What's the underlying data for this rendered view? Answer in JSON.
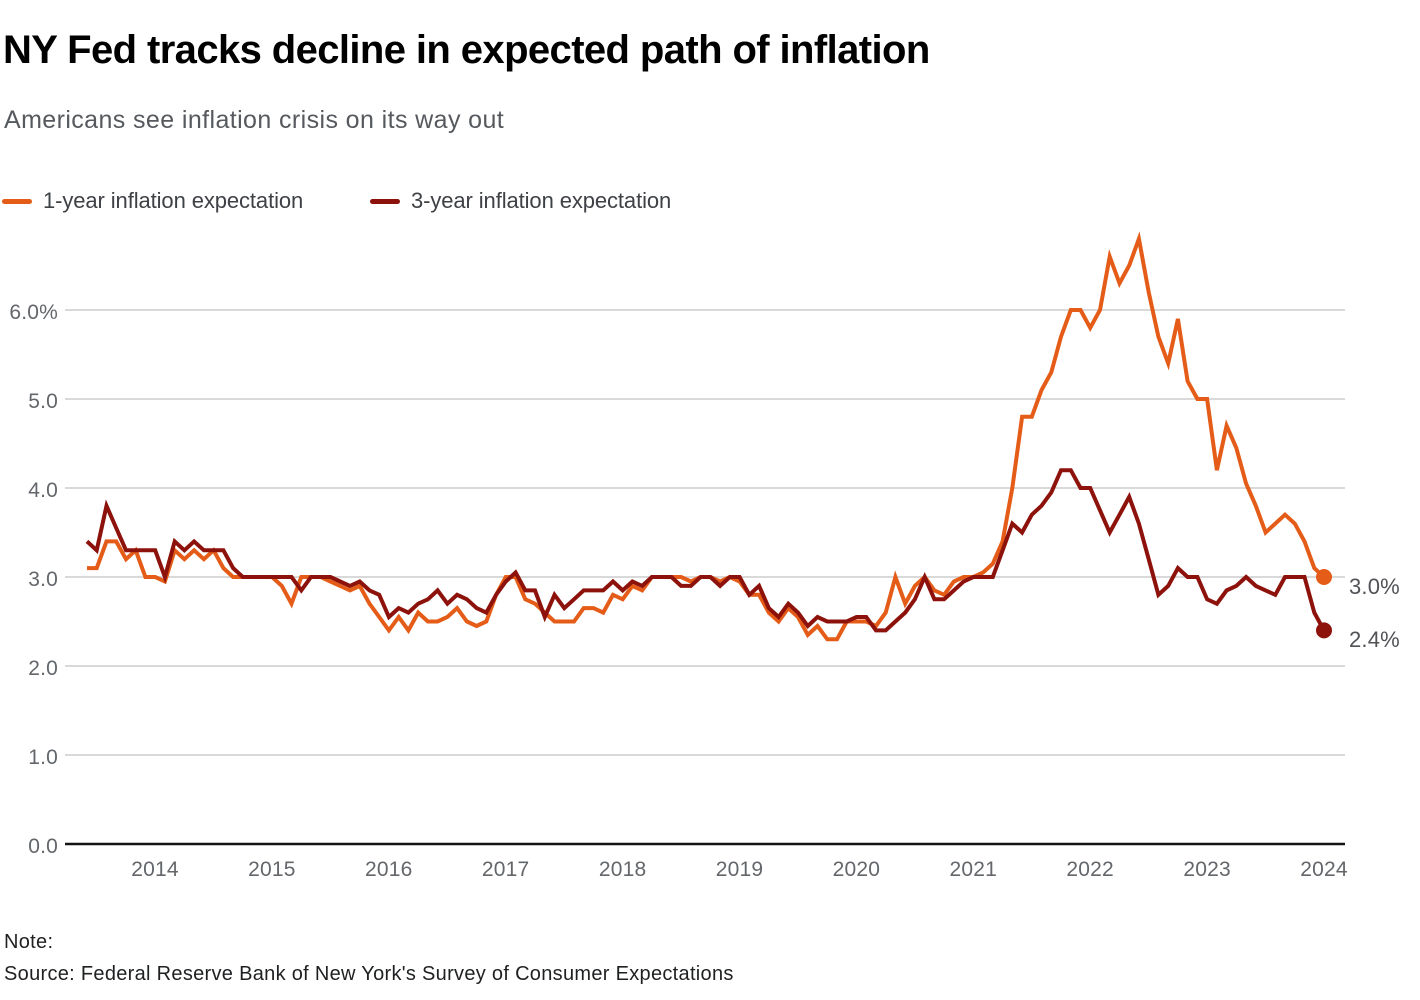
{
  "header": {
    "title": "NY Fed tracks decline in expected path of inflation",
    "subtitle": "Americans see inflation crisis on its way out"
  },
  "legend": {
    "items": [
      {
        "label": "1-year inflation expectation"
      },
      {
        "label": "3-year inflation expectation"
      }
    ]
  },
  "notes": {
    "note_label": "Note:",
    "source": "Source: Federal Reserve Bank of New York's Survey of Consumer Expectations"
  },
  "chart_data": {
    "type": "line",
    "title": "NY Fed tracks decline in expected path of inflation",
    "subtitle": "Americans see inflation crisis on its way out",
    "frequency": "monthly",
    "x_start": "2013-06",
    "x_end": "2024-01",
    "x_ticks": [
      "2014",
      "2015",
      "2016",
      "2017",
      "2018",
      "2019",
      "2020",
      "2021",
      "2022",
      "2023",
      "2024"
    ],
    "y_ticks": [
      {
        "v": 6,
        "label": "6.0%"
      },
      {
        "v": 5,
        "label": "5.0"
      },
      {
        "v": 4,
        "label": "4.0"
      },
      {
        "v": 3,
        "label": "3.0"
      },
      {
        "v": 2,
        "label": "2.0"
      },
      {
        "v": 1,
        "label": "1.0"
      },
      {
        "v": 0,
        "label": "0.0"
      }
    ],
    "ylim": [
      0,
      7
    ],
    "grid": "horizontal",
    "legend_position": "top-left",
    "colors": {
      "one_year": "#e45c17",
      "three_year": "#8c120b"
    },
    "series": [
      {
        "name": "1-year inflation expectation",
        "color": "#e45c17",
        "end_label": "3.0%",
        "last_value": 3.0,
        "values": [
          3.1,
          3.1,
          3.4,
          3.4,
          3.2,
          3.3,
          3.0,
          3.0,
          2.95,
          3.3,
          3.2,
          3.3,
          3.2,
          3.3,
          3.1,
          3.0,
          3.0,
          3.0,
          3.0,
          3.0,
          2.9,
          2.7,
          3.0,
          3.0,
          3.0,
          2.95,
          2.9,
          2.85,
          2.9,
          2.7,
          2.55,
          2.4,
          2.55,
          2.4,
          2.6,
          2.5,
          2.5,
          2.55,
          2.65,
          2.5,
          2.45,
          2.5,
          2.8,
          3.0,
          3.0,
          2.75,
          2.7,
          2.6,
          2.5,
          2.5,
          2.5,
          2.65,
          2.65,
          2.6,
          2.8,
          2.75,
          2.9,
          2.85,
          3.0,
          3.0,
          3.0,
          3.0,
          2.95,
          3.0,
          3.0,
          2.95,
          3.0,
          2.95,
          2.8,
          2.8,
          2.6,
          2.5,
          2.65,
          2.55,
          2.35,
          2.45,
          2.3,
          2.3,
          2.5,
          2.5,
          2.5,
          2.45,
          2.6,
          3.0,
          2.7,
          2.9,
          3.0,
          2.85,
          2.8,
          2.95,
          3.0,
          3.0,
          3.05,
          3.15,
          3.4,
          4.0,
          4.8,
          4.8,
          5.1,
          5.3,
          5.7,
          6.0,
          6.0,
          5.8,
          6.0,
          6.6,
          6.3,
          6.5,
          6.8,
          6.2,
          5.7,
          5.4,
          5.9,
          5.2,
          5.0,
          5.0,
          4.2,
          4.7,
          4.45,
          4.05,
          3.8,
          3.5,
          3.6,
          3.7,
          3.6,
          3.4,
          3.1,
          3.0
        ]
      },
      {
        "name": "3-year inflation expectation",
        "color": "#8c120b",
        "end_label": "2.4%",
        "last_value": 2.4,
        "values": [
          3.4,
          3.3,
          3.8,
          3.55,
          3.3,
          3.3,
          3.3,
          3.3,
          3.0,
          3.4,
          3.3,
          3.4,
          3.3,
          3.3,
          3.3,
          3.1,
          3.0,
          3.0,
          3.0,
          3.0,
          3.0,
          3.0,
          2.85,
          3.0,
          3.0,
          3.0,
          2.95,
          2.9,
          2.95,
          2.85,
          2.8,
          2.55,
          2.65,
          2.6,
          2.7,
          2.75,
          2.85,
          2.7,
          2.8,
          2.75,
          2.65,
          2.6,
          2.8,
          2.95,
          3.05,
          2.85,
          2.85,
          2.55,
          2.8,
          2.65,
          2.75,
          2.85,
          2.85,
          2.85,
          2.95,
          2.85,
          2.95,
          2.9,
          3.0,
          3.0,
          3.0,
          2.9,
          2.9,
          3.0,
          3.0,
          2.9,
          3.0,
          3.0,
          2.8,
          2.9,
          2.65,
          2.55,
          2.7,
          2.6,
          2.45,
          2.55,
          2.5,
          2.5,
          2.5,
          2.55,
          2.55,
          2.4,
          2.4,
          2.5,
          2.6,
          2.75,
          3.0,
          2.75,
          2.75,
          2.85,
          2.95,
          3.0,
          3.0,
          3.0,
          3.3,
          3.6,
          3.5,
          3.7,
          3.8,
          3.95,
          4.2,
          4.2,
          4.0,
          4.0,
          3.75,
          3.5,
          3.7,
          3.9,
          3.6,
          3.2,
          2.8,
          2.9,
          3.1,
          3.0,
          3.0,
          2.75,
          2.7,
          2.85,
          2.9,
          3.0,
          2.9,
          2.85,
          2.8,
          3.0,
          3.0,
          3.0,
          2.6,
          2.4
        ]
      }
    ]
  }
}
